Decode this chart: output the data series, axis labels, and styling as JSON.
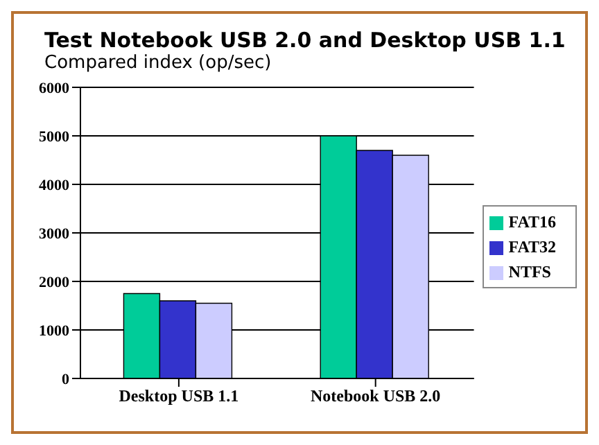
{
  "chart_data": {
    "type": "bar",
    "title": "Test Notebook USB 2.0 and Desktop USB 1.1",
    "subtitle": "Compared index (op/sec)",
    "categories": [
      "Desktop USB 1.1",
      "Notebook USB 2.0"
    ],
    "series": [
      {
        "name": "FAT16",
        "color": "#00cc99",
        "values": [
          1750,
          5000
        ]
      },
      {
        "name": "FAT32",
        "color": "#3333cc",
        "values": [
          1600,
          4700
        ]
      },
      {
        "name": "NTFS",
        "color": "#ccccff",
        "values": [
          1550,
          4600
        ]
      }
    ],
    "ylim": [
      0,
      6000
    ],
    "yticks": [
      0,
      1000,
      2000,
      3000,
      4000,
      5000,
      6000
    ],
    "grid": "y",
    "legend": "right"
  }
}
